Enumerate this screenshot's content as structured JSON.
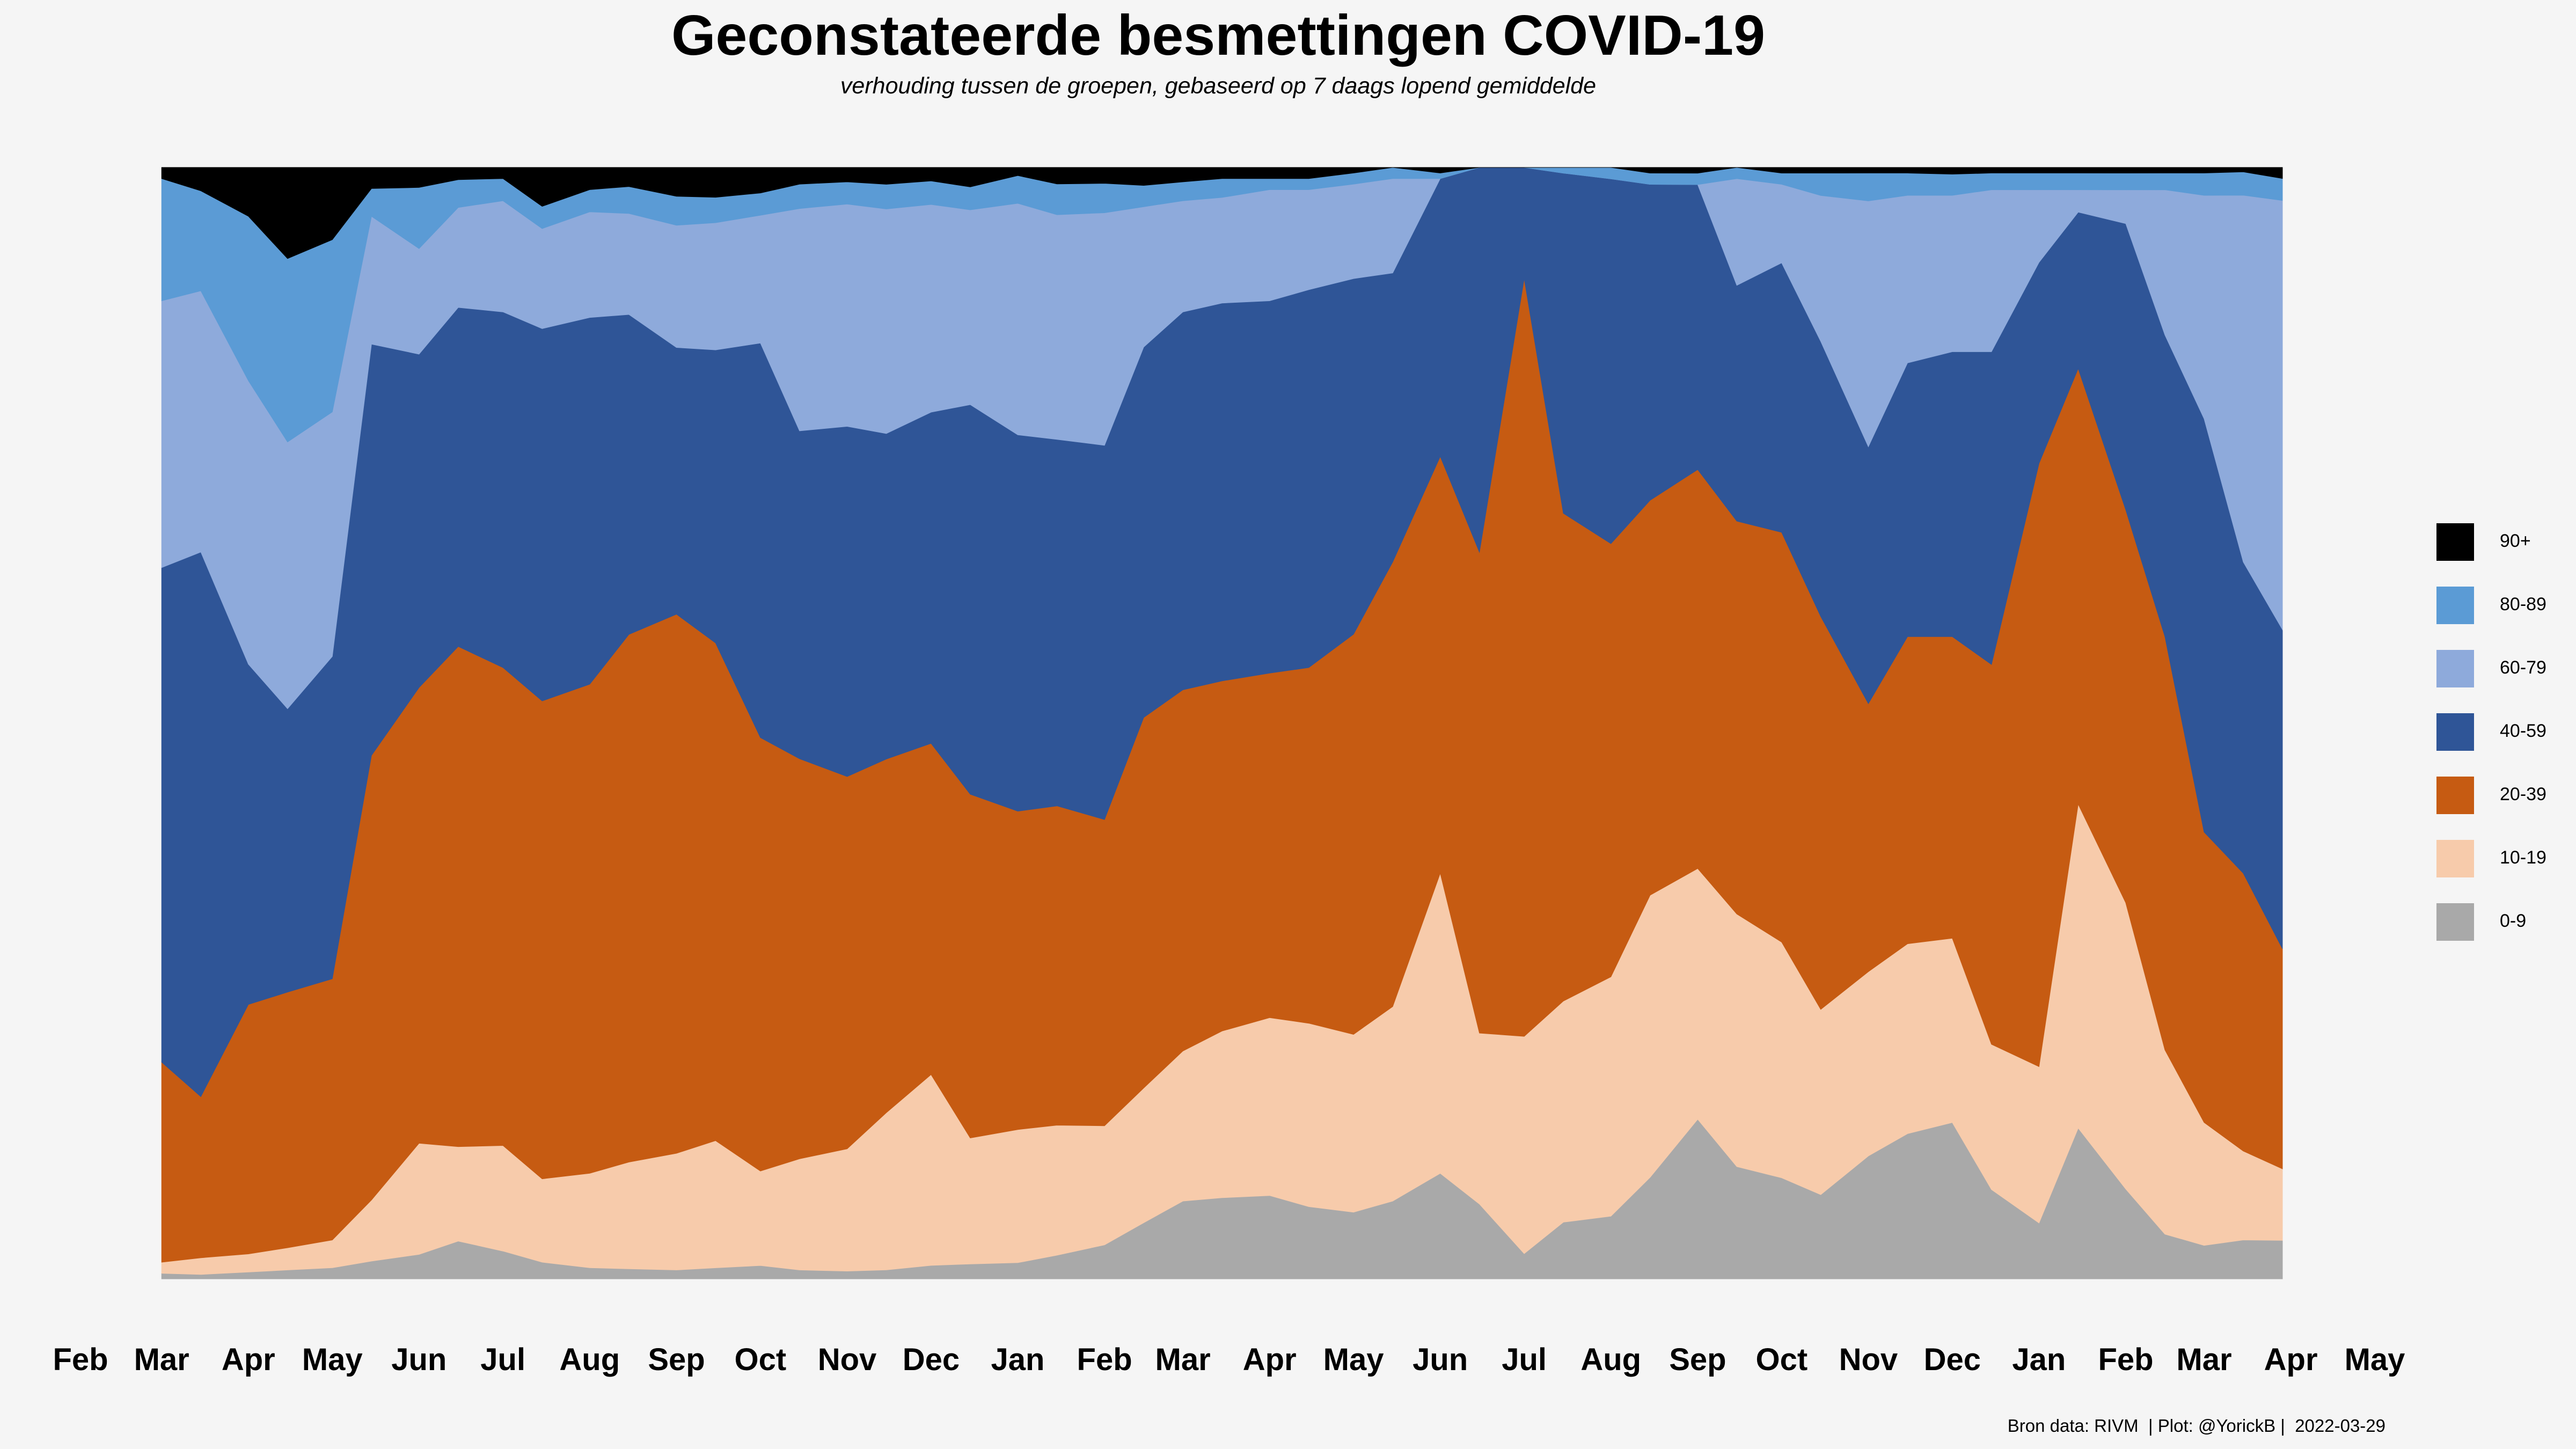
{
  "title": "Geconstateerde besmettingen COVID-19",
  "subtitle": "verhouding tussen de groepen, gebaseerd op 7 daags lopend gemiddelde",
  "caption": "Bron data: RIVM  | Plot: @YorickB |  2022-03-29",
  "chart_data": {
    "type": "area",
    "stacked": "percent",
    "x_axis_ticks": [
      "Feb",
      "Mar",
      "Apr",
      "May",
      "Jun",
      "Jul",
      "Aug",
      "Sep",
      "Oct",
      "Nov",
      "Dec",
      "Jan",
      "Feb",
      "Mar",
      "Apr",
      "May",
      "Jun",
      "Jul",
      "Aug",
      "Sep",
      "Oct",
      "Nov",
      "Dec",
      "Jan",
      "Feb",
      "Mar",
      "Apr",
      "May"
    ],
    "x_axis_tick_dates": [
      "2020-02-01",
      "2020-03-01",
      "2020-04-01",
      "2020-05-01",
      "2020-06-01",
      "2020-07-01",
      "2020-08-01",
      "2020-09-01",
      "2020-10-01",
      "2020-11-01",
      "2020-12-01",
      "2021-01-01",
      "2021-02-01",
      "2021-03-01",
      "2021-04-01",
      "2021-05-01",
      "2021-06-01",
      "2021-07-01",
      "2021-08-01",
      "2021-09-01",
      "2021-10-01",
      "2021-11-01",
      "2021-12-01",
      "2022-01-01",
      "2022-02-01",
      "2022-03-01",
      "2022-04-01",
      "2022-05-01"
    ],
    "xlim": [
      "2020-02-01",
      "2022-05-01"
    ],
    "data_start": "2020-03-01",
    "data_end": "2022-03-29",
    "ylim": [
      0,
      100
    ],
    "y_axis_shown": false,
    "grid": false,
    "legend_position": "right",
    "legend_order": [
      "90+",
      "80-89",
      "60-79",
      "40-59",
      "20-39",
      "10-19",
      "0-9"
    ],
    "x": [
      "2020-03-01",
      "2020-03-15",
      "2020-04-01",
      "2020-04-15",
      "2020-05-01",
      "2020-05-15",
      "2020-06-01",
      "2020-06-15",
      "2020-07-01",
      "2020-07-15",
      "2020-08-01",
      "2020-08-15",
      "2020-09-01",
      "2020-09-15",
      "2020-10-01",
      "2020-10-15",
      "2020-11-01",
      "2020-11-15",
      "2020-12-01",
      "2020-12-15",
      "2021-01-01",
      "2021-01-15",
      "2021-02-01",
      "2021-02-15",
      "2021-03-01",
      "2021-03-15",
      "2021-04-01",
      "2021-04-15",
      "2021-05-01",
      "2021-05-15",
      "2021-06-01",
      "2021-06-15",
      "2021-07-01",
      "2021-07-15",
      "2021-08-01",
      "2021-08-15",
      "2021-09-01",
      "2021-09-15",
      "2021-10-01",
      "2021-10-15",
      "2021-11-01",
      "2021-11-15",
      "2021-12-01",
      "2021-12-15",
      "2022-01-01",
      "2022-01-15",
      "2022-02-01",
      "2022-02-15",
      "2022-03-01",
      "2022-03-15",
      "2022-03-29"
    ],
    "series": [
      {
        "name": "0-9",
        "color": "#a9a9a9",
        "values": [
          0.5,
          0.4,
          0.6,
          0.8,
          1.0,
          1.6,
          2.2,
          3.4,
          2.5,
          1.5,
          1.0,
          0.9,
          0.8,
          1.0,
          1.2,
          0.8,
          0.7,
          0.8,
          1.2,
          1.3,
          1.4,
          2.0,
          3.0,
          5.0,
          7.0,
          7.3,
          7.5,
          6.5,
          6.0,
          7.0,
          9.5,
          7.0,
          2.5,
          5.0,
          5.5,
          9.0,
          14.0,
          10.0,
          9.0,
          7.5,
          11.0,
          13.0,
          14.0,
          8.0,
          5.0,
          13.5,
          8.0,
          4.0,
          3.0,
          3.5,
          3.5
        ]
      },
      {
        "name": "10-19",
        "color": "#f7cbab",
        "values": [
          1.0,
          1.5,
          1.6,
          2.0,
          2.5,
          5.5,
          10.0,
          8.5,
          9.5,
          7.5,
          8.5,
          9.5,
          10.5,
          11.5,
          8.5,
          10.0,
          11.0,
          14.0,
          17.0,
          11.0,
          11.5,
          11.0,
          10.5,
          12.0,
          13.5,
          15.0,
          16.0,
          16.5,
          16.0,
          17.5,
          27.0,
          16.0,
          21.5,
          19.5,
          21.0,
          25.0,
          22.0,
          22.5,
          21.0,
          16.5,
          16.5,
          17.0,
          16.5,
          13.0,
          14.0,
          29.0,
          25.5,
          16.5,
          11.0,
          8.0,
          6.5
        ]
      },
      {
        "name": "20-39",
        "color": "#c65b12",
        "values": [
          18.0,
          14.5,
          22.0,
          23.0,
          23.5,
          40.0,
          41.0,
          45.0,
          43.0,
          43.0,
          44.0,
          47.0,
          48.5,
          45.0,
          39.0,
          36.0,
          33.5,
          31.5,
          29.5,
          30.0,
          27.5,
          27.0,
          27.0,
          33.0,
          32.5,
          31.5,
          31.0,
          32.0,
          36.0,
          40.0,
          37.5,
          45.0,
          75.0,
          43.0,
          38.0,
          35.0,
          35.0,
          35.0,
          36.5,
          35.0,
          24.0,
          27.5,
          27.0,
          34.0,
          54.0,
          39.0,
          35.0,
          37.0,
          26.0,
          25.0,
          20.0
        ]
      },
      {
        "name": "40-59",
        "color": "#2f5597",
        "values": [
          44.5,
          49.0,
          30.0,
          25.5,
          29.0,
          37.0,
          30.0,
          30.5,
          32.0,
          33.5,
          33.0,
          28.5,
          24.0,
          26.5,
          35.5,
          29.5,
          31.5,
          29.0,
          29.5,
          34.0,
          32.5,
          31.0,
          33.0,
          33.0,
          34.0,
          34.0,
          33.5,
          34.0,
          32.0,
          26.0,
          25.0,
          36.0,
          11.0,
          30.0,
          32.0,
          28.0,
          25.0,
          21.0,
          24.0,
          24.5,
          23.0,
          24.5,
          25.5,
          28.0,
          18.0,
          14.0,
          25.5,
          27.0,
          37.0,
          28.0,
          29.0
        ]
      },
      {
        "name": "60-79",
        "color": "#8eaadb",
        "values": [
          24.0,
          23.5,
          25.0,
          24.0,
          22.0,
          11.5,
          9.5,
          9.0,
          10.0,
          9.0,
          9.5,
          9.0,
          11.0,
          11.5,
          11.5,
          20.0,
          20.0,
          20.0,
          18.5,
          17.0,
          20.0,
          19.0,
          20.5,
          12.5,
          10.0,
          9.5,
          10.0,
          9.0,
          8.5,
          8.5,
          0.0,
          0.0,
          0.0,
          0.0,
          0.0,
          0.0,
          0.0,
          9.5,
          7.0,
          13.0,
          22.0,
          15.0,
          14.0,
          14.5,
          6.5,
          2.0,
          3.0,
          13.0,
          20.0,
          33.0,
          39.0
        ]
      },
      {
        "name": "80-89",
        "color": "#5b9bd5",
        "values": [
          11.0,
          9.0,
          14.5,
          16.5,
          15.5,
          2.5,
          5.5,
          2.5,
          2.0,
          2.0,
          2.0,
          2.4,
          2.6,
          2.3,
          2.0,
          2.2,
          2.0,
          2.2,
          2.1,
          2.0,
          2.4,
          2.6,
          2.6,
          1.9,
          1.7,
          1.7,
          1.0,
          1.0,
          1.0,
          1.0,
          0.5,
          0.0,
          0.0,
          0.5,
          1.0,
          1.0,
          1.0,
          1.0,
          1.0,
          2.0,
          2.5,
          2.0,
          1.9,
          1.5,
          1.5,
          1.5,
          1.5,
          1.5,
          2.0,
          2.1,
          2.0
        ]
      },
      {
        "name": "90+",
        "color": "#000000",
        "values": [
          1.0,
          2.1,
          4.3,
          8.2,
          6.5,
          1.9,
          1.8,
          1.1,
          1.0,
          3.5,
          2.0,
          1.7,
          2.6,
          2.7,
          2.3,
          1.5,
          1.3,
          1.5,
          1.2,
          1.7,
          0.7,
          1.4,
          1.4,
          1.6,
          1.3,
          1.0,
          1.0,
          1.0,
          0.5,
          0.0,
          0.5,
          0.0,
          0.0,
          0.0,
          0.0,
          0.5,
          0.5,
          0.0,
          0.5,
          0.5,
          0.5,
          0.5,
          0.6,
          0.5,
          0.5,
          0.5,
          0.5,
          0.5,
          0.5,
          0.4,
          1.0
        ]
      }
    ]
  }
}
